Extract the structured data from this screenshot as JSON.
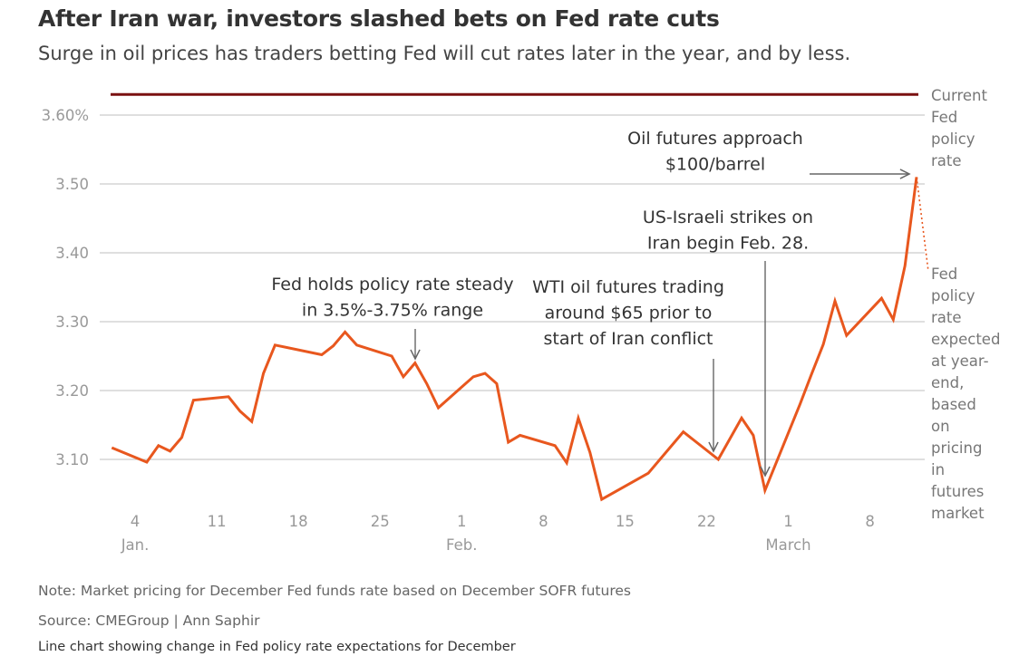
{
  "title": "After Iran war, investors slashed bets on Fed rate cuts",
  "subtitle": "Surge in oil prices has traders betting Fed will cut rates later in the year, and by less.",
  "footer": {
    "note": "Note: Market pricing for December Fed funds rate based on December SOFR futures",
    "source": "Source: CMEGroup | Ann Saphir",
    "description": "Line chart showing change in Fed policy rate expectations for December"
  },
  "chart_data": {
    "type": "line",
    "xlim": [
      "2026-01-02",
      "2026-03-13"
    ],
    "ylim": [
      3.03,
      3.63
    ],
    "grid": true,
    "colors": {
      "series": "#e8571e",
      "current_rate": "#7a1010",
      "grid": "#cccccc",
      "tick": "#999999"
    },
    "y_ticks": [
      {
        "value": 3.1,
        "label": "3.10"
      },
      {
        "value": 3.2,
        "label": "3.20"
      },
      {
        "value": 3.3,
        "label": "3.30"
      },
      {
        "value": 3.4,
        "label": "3.40"
      },
      {
        "value": 3.5,
        "label": "3.50"
      },
      {
        "value": 3.6,
        "label": "3.60%"
      }
    ],
    "x_ticks": [
      {
        "date": "2026-01-04",
        "label": "4",
        "month": "Jan."
      },
      {
        "date": "2026-01-11",
        "label": "11"
      },
      {
        "date": "2026-01-18",
        "label": "18"
      },
      {
        "date": "2026-01-25",
        "label": "25"
      },
      {
        "date": "2026-02-01",
        "label": "1",
        "month": "Feb."
      },
      {
        "date": "2026-02-08",
        "label": "8"
      },
      {
        "date": "2026-02-15",
        "label": "15"
      },
      {
        "date": "2026-02-22",
        "label": "22"
      },
      {
        "date": "2026-03-01",
        "label": "1",
        "month": "March"
      },
      {
        "date": "2026-03-08",
        "label": "8"
      }
    ],
    "current_rate": {
      "value": 3.63,
      "label": [
        "Current",
        "Fed",
        "policy",
        "rate"
      ]
    },
    "series": [
      {
        "points": [
          [
            "2026-01-02",
            3.117
          ],
          [
            "2026-01-05",
            3.096
          ],
          [
            "2026-01-06",
            3.12
          ],
          [
            "2026-01-07",
            3.112
          ],
          [
            "2026-01-08",
            3.132
          ],
          [
            "2026-01-09",
            3.186
          ],
          [
            "2026-01-12",
            3.191
          ],
          [
            "2026-01-13",
            3.17
          ],
          [
            "2026-01-14",
            3.155
          ],
          [
            "2026-01-15",
            3.225
          ],
          [
            "2026-01-16",
            3.266
          ],
          [
            "2026-01-20",
            3.252
          ],
          [
            "2026-01-21",
            3.265
          ],
          [
            "2026-01-22",
            3.285
          ],
          [
            "2026-01-23",
            3.266
          ],
          [
            "2026-01-26",
            3.25
          ],
          [
            "2026-01-27",
            3.22
          ],
          [
            "2026-01-28",
            3.24
          ],
          [
            "2026-01-29",
            3.21
          ],
          [
            "2026-01-30",
            3.175
          ],
          [
            "2026-02-02",
            3.22
          ],
          [
            "2026-02-03",
            3.225
          ],
          [
            "2026-02-04",
            3.21
          ],
          [
            "2026-02-05",
            3.125
          ],
          [
            "2026-02-06",
            3.135
          ],
          [
            "2026-02-09",
            3.12
          ],
          [
            "2026-02-10",
            3.095
          ],
          [
            "2026-02-11",
            3.16
          ],
          [
            "2026-02-12",
            3.11
          ],
          [
            "2026-02-13",
            3.042
          ],
          [
            "2026-02-17",
            3.08
          ],
          [
            "2026-02-20",
            3.14
          ],
          [
            "2026-02-23",
            3.1
          ],
          [
            "2026-02-25",
            3.16
          ],
          [
            "2026-02-26",
            3.135
          ],
          [
            "2026-02-27",
            3.055
          ],
          [
            "2026-03-02",
            3.18
          ],
          [
            "2026-03-03",
            3.224
          ],
          [
            "2026-03-04",
            3.267
          ],
          [
            "2026-03-05",
            3.33
          ],
          [
            "2026-03-06",
            3.28
          ],
          [
            "2026-03-09",
            3.334
          ],
          [
            "2026-03-10",
            3.303
          ],
          [
            "2026-03-11",
            3.381
          ],
          [
            "2026-03-12",
            3.51
          ]
        ]
      }
    ],
    "projection": {
      "from": [
        "2026-03-12",
        3.51
      ],
      "to": [
        "2026-03-13",
        3.374
      ],
      "label": [
        "Fed",
        "policy",
        "rate",
        "expected",
        "at year-",
        "end,",
        "based",
        "on",
        "pricing",
        "in",
        "futures",
        "market"
      ]
    },
    "annotations": [
      {
        "lines": [
          "Fed holds policy rate steady",
          "in 3.5%-3.75% range"
        ],
        "target": [
          "2026-01-28",
          3.24
        ]
      },
      {
        "lines": [
          "WTI oil futures trading",
          "around $65 prior to",
          "start of Iran conflict"
        ],
        "target": [
          "2026-02-23",
          3.1
        ]
      },
      {
        "lines": [
          "US-Israeli strikes on",
          "Iran begin Feb. 28."
        ],
        "target": [
          "2026-02-27",
          3.055
        ]
      },
      {
        "lines": [
          "Oil futures approach",
          "$100/barrel"
        ],
        "target": [
          "2026-03-12",
          3.51
        ]
      }
    ]
  }
}
